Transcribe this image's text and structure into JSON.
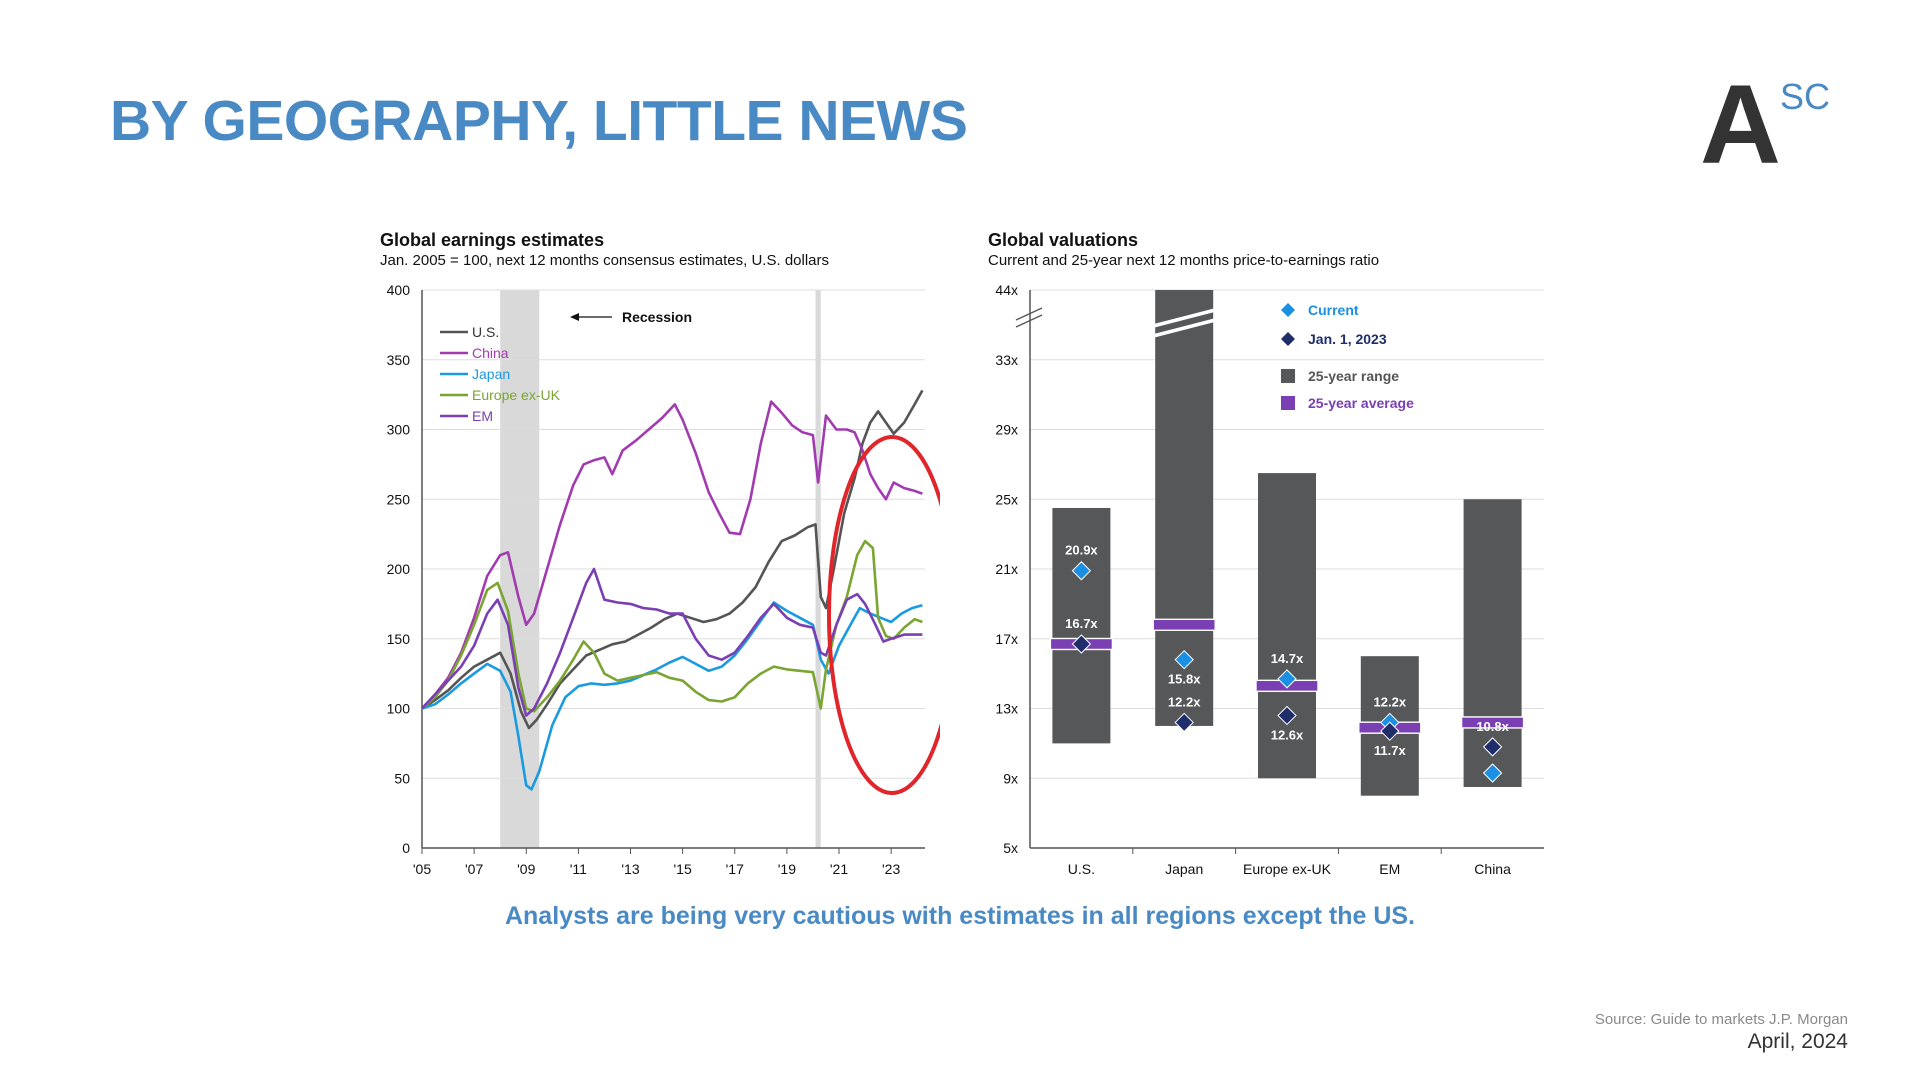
{
  "slide": {
    "title": "BY GEOGRAPHY, LITTLE NEWS",
    "logo_main": "A",
    "logo_sup": "SC",
    "caption": "Analysts are being very cautious with estimates in all regions except the US.",
    "source": "Source: Guide to markets J.P. Morgan",
    "date": "April, 2024"
  },
  "colors": {
    "title": "#4a8ac4",
    "highlight_ellipse": "#e0262b",
    "recession_band": "#d9d9d9"
  },
  "chart_data": [
    {
      "type": "line",
      "title": "Global earnings estimates",
      "subtitle": "Jan. 2005 = 100, next 12 months consensus estimates, U.S. dollars",
      "ylim": [
        0,
        400
      ],
      "xlim": [
        2005,
        2024.3
      ],
      "yticks": [
        "0",
        "50",
        "100",
        "150",
        "200",
        "250",
        "300",
        "350",
        "400"
      ],
      "ytick_values": [
        0,
        50,
        100,
        150,
        200,
        250,
        300,
        350,
        400
      ],
      "xticks": [
        "'05",
        "'07",
        "'09",
        "'11",
        "'13",
        "'15",
        "'17",
        "'19",
        "'21",
        "'23"
      ],
      "xtick_values": [
        2005,
        2007,
        2009,
        2011,
        2013,
        2015,
        2017,
        2019,
        2021,
        2023
      ],
      "recession_label": "Recession",
      "recessions": [
        [
          2008.0,
          2009.5
        ],
        [
          2020.1,
          2020.3
        ]
      ],
      "legend_position": "top-left",
      "series": [
        {
          "name": "U.S.",
          "color": "#555555",
          "points": [
            [
              2005,
              100
            ],
            [
              2005.5,
              106
            ],
            [
              2006,
              113
            ],
            [
              2006.5,
              122
            ],
            [
              2007,
              130
            ],
            [
              2007.5,
              135
            ],
            [
              2008,
              140
            ],
            [
              2008.4,
              125
            ],
            [
              2008.8,
              98
            ],
            [
              2009.1,
              86
            ],
            [
              2009.4,
              92
            ],
            [
              2009.8,
              103
            ],
            [
              2010.3,
              118
            ],
            [
              2010.8,
              128
            ],
            [
              2011.3,
              138
            ],
            [
              2011.8,
              142
            ],
            [
              2012.3,
              146
            ],
            [
              2012.8,
              148
            ],
            [
              2013.3,
              153
            ],
            [
              2013.8,
              158
            ],
            [
              2014.3,
              164
            ],
            [
              2014.8,
              168
            ],
            [
              2015.3,
              165
            ],
            [
              2015.8,
              162
            ],
            [
              2016.3,
              164
            ],
            [
              2016.8,
              168
            ],
            [
              2017.3,
              176
            ],
            [
              2017.8,
              187
            ],
            [
              2018.3,
              205
            ],
            [
              2018.8,
              220
            ],
            [
              2019.3,
              224
            ],
            [
              2019.8,
              230
            ],
            [
              2020.1,
              232
            ],
            [
              2020.3,
              180
            ],
            [
              2020.5,
              172
            ],
            [
              2020.8,
              200
            ],
            [
              2021.2,
              240
            ],
            [
              2021.6,
              265
            ],
            [
              2021.9,
              290
            ],
            [
              2022.2,
              305
            ],
            [
              2022.5,
              313
            ],
            [
              2022.8,
              305
            ],
            [
              2023.1,
              297
            ],
            [
              2023.5,
              305
            ],
            [
              2023.9,
              318
            ],
            [
              2024.2,
              328
            ]
          ]
        },
        {
          "name": "China",
          "color": "#a23bb0",
          "points": [
            [
              2005,
              100
            ],
            [
              2005.5,
              110
            ],
            [
              2006,
              122
            ],
            [
              2006.5,
              140
            ],
            [
              2007,
              165
            ],
            [
              2007.5,
              195
            ],
            [
              2008,
              210
            ],
            [
              2008.3,
              212
            ],
            [
              2008.7,
              180
            ],
            [
              2009.0,
              160
            ],
            [
              2009.3,
              168
            ],
            [
              2009.8,
              200
            ],
            [
              2010.3,
              232
            ],
            [
              2010.8,
              260
            ],
            [
              2011.2,
              275
            ],
            [
              2011.6,
              278
            ],
            [
              2012.0,
              280
            ],
            [
              2012.3,
              268
            ],
            [
              2012.7,
              285
            ],
            [
              2013.2,
              292
            ],
            [
              2013.7,
              300
            ],
            [
              2014.2,
              308
            ],
            [
              2014.7,
              318
            ],
            [
              2015.0,
              307
            ],
            [
              2015.5,
              283
            ],
            [
              2016.0,
              255
            ],
            [
              2016.4,
              240
            ],
            [
              2016.8,
              226
            ],
            [
              2017.2,
              225
            ],
            [
              2017.6,
              250
            ],
            [
              2018.0,
              290
            ],
            [
              2018.4,
              320
            ],
            [
              2018.8,
              312
            ],
            [
              2019.2,
              303
            ],
            [
              2019.6,
              298
            ],
            [
              2020.0,
              296
            ],
            [
              2020.2,
              262
            ],
            [
              2020.5,
              310
            ],
            [
              2020.9,
              300
            ],
            [
              2021.3,
              300
            ],
            [
              2021.6,
              298
            ],
            [
              2021.9,
              285
            ],
            [
              2022.2,
              268
            ],
            [
              2022.5,
              258
            ],
            [
              2022.8,
              250
            ],
            [
              2023.1,
              262
            ],
            [
              2023.5,
              258
            ],
            [
              2023.9,
              256
            ],
            [
              2024.2,
              254
            ]
          ]
        },
        {
          "name": "Japan",
          "color": "#1a9ae0",
          "points": [
            [
              2005,
              100
            ],
            [
              2005.5,
              103
            ],
            [
              2006,
              110
            ],
            [
              2006.5,
              118
            ],
            [
              2007,
              125
            ],
            [
              2007.5,
              132
            ],
            [
              2008,
              127
            ],
            [
              2008.4,
              112
            ],
            [
              2008.7,
              80
            ],
            [
              2009.0,
              45
            ],
            [
              2009.2,
              42
            ],
            [
              2009.5,
              55
            ],
            [
              2010.0,
              88
            ],
            [
              2010.5,
              108
            ],
            [
              2011.0,
              116
            ],
            [
              2011.5,
              118
            ],
            [
              2012.0,
              117
            ],
            [
              2012.5,
              118
            ],
            [
              2013.0,
              120
            ],
            [
              2013.5,
              124
            ],
            [
              2014.0,
              128
            ],
            [
              2014.5,
              133
            ],
            [
              2015.0,
              137
            ],
            [
              2015.5,
              132
            ],
            [
              2016.0,
              127
            ],
            [
              2016.5,
              130
            ],
            [
              2017.0,
              138
            ],
            [
              2017.5,
              150
            ],
            [
              2018.0,
              163
            ],
            [
              2018.5,
              176
            ],
            [
              2019.0,
              170
            ],
            [
              2019.5,
              165
            ],
            [
              2020.0,
              160
            ],
            [
              2020.3,
              135
            ],
            [
              2020.6,
              125
            ],
            [
              2021.0,
              145
            ],
            [
              2021.5,
              162
            ],
            [
              2021.8,
              172
            ],
            [
              2022.2,
              168
            ],
            [
              2022.6,
              165
            ],
            [
              2023.0,
              162
            ],
            [
              2023.4,
              168
            ],
            [
              2023.8,
              172
            ],
            [
              2024.2,
              174
            ]
          ]
        },
        {
          "name": "Europe ex-UK",
          "color": "#7aa531",
          "points": [
            [
              2005,
              100
            ],
            [
              2005.5,
              108
            ],
            [
              2006,
              120
            ],
            [
              2006.5,
              138
            ],
            [
              2007,
              160
            ],
            [
              2007.5,
              185
            ],
            [
              2007.9,
              190
            ],
            [
              2008.3,
              170
            ],
            [
              2008.7,
              125
            ],
            [
              2009.0,
              100
            ],
            [
              2009.3,
              98
            ],
            [
              2009.8,
              108
            ],
            [
              2010.3,
              120
            ],
            [
              2010.8,
              135
            ],
            [
              2011.2,
              148
            ],
            [
              2011.6,
              140
            ],
            [
              2012.0,
              125
            ],
            [
              2012.5,
              120
            ],
            [
              2013.0,
              122
            ],
            [
              2013.5,
              124
            ],
            [
              2014.0,
              126
            ],
            [
              2014.5,
              122
            ],
            [
              2015.0,
              120
            ],
            [
              2015.5,
              112
            ],
            [
              2016.0,
              106
            ],
            [
              2016.5,
              105
            ],
            [
              2017.0,
              108
            ],
            [
              2017.5,
              118
            ],
            [
              2018.0,
              125
            ],
            [
              2018.5,
              130
            ],
            [
              2019.0,
              128
            ],
            [
              2019.5,
              127
            ],
            [
              2020.0,
              126
            ],
            [
              2020.3,
              100
            ],
            [
              2020.5,
              128
            ],
            [
              2020.9,
              160
            ],
            [
              2021.3,
              180
            ],
            [
              2021.7,
              210
            ],
            [
              2022.0,
              220
            ],
            [
              2022.3,
              215
            ],
            [
              2022.5,
              165
            ],
            [
              2022.8,
              152
            ],
            [
              2023.1,
              150
            ],
            [
              2023.5,
              158
            ],
            [
              2023.9,
              164
            ],
            [
              2024.2,
              162
            ]
          ]
        },
        {
          "name": "EM",
          "color": "#7b3fb4",
          "points": [
            [
              2005,
              100
            ],
            [
              2005.5,
              110
            ],
            [
              2006,
              120
            ],
            [
              2006.5,
              130
            ],
            [
              2007,
              145
            ],
            [
              2007.5,
              168
            ],
            [
              2007.9,
              178
            ],
            [
              2008.3,
              160
            ],
            [
              2008.7,
              115
            ],
            [
              2009.0,
              95
            ],
            [
              2009.3,
              100
            ],
            [
              2009.8,
              118
            ],
            [
              2010.3,
              140
            ],
            [
              2010.8,
              165
            ],
            [
              2011.3,
              190
            ],
            [
              2011.6,
              200
            ],
            [
              2012.0,
              178
            ],
            [
              2012.5,
              176
            ],
            [
              2013.0,
              175
            ],
            [
              2013.5,
              172
            ],
            [
              2014.0,
              171
            ],
            [
              2014.5,
              168
            ],
            [
              2015.0,
              168
            ],
            [
              2015.5,
              150
            ],
            [
              2016.0,
              138
            ],
            [
              2016.5,
              135
            ],
            [
              2017.0,
              140
            ],
            [
              2017.5,
              152
            ],
            [
              2018.0,
              165
            ],
            [
              2018.5,
              175
            ],
            [
              2019.0,
              165
            ],
            [
              2019.5,
              160
            ],
            [
              2020.0,
              158
            ],
            [
              2020.3,
              140
            ],
            [
              2020.5,
              138
            ],
            [
              2020.9,
              160
            ],
            [
              2021.3,
              178
            ],
            [
              2021.7,
              182
            ],
            [
              2022.0,
              175
            ],
            [
              2022.4,
              160
            ],
            [
              2022.7,
              148
            ],
            [
              2023.0,
              150
            ],
            [
              2023.5,
              153
            ],
            [
              2024.2,
              153
            ]
          ]
        }
      ]
    },
    {
      "type": "bar",
      "title": "Global valuations",
      "subtitle": "Current and 25-year next 12 months price-to-earnings ratio",
      "ylim": [
        5,
        44
      ],
      "yticks": [
        "5x",
        "9x",
        "13x",
        "17x",
        "21x",
        "25x",
        "29x",
        "33x",
        "44x"
      ],
      "ytick_values": [
        5,
        9,
        13,
        17,
        21,
        25,
        29,
        33,
        44
      ],
      "axis_break": true,
      "categories": [
        "U.S.",
        "Japan",
        "Europe ex-UK",
        "EM",
        "China"
      ],
      "legend": [
        {
          "label": "Current",
          "color": "#1a8fe3",
          "marker": "diamond"
        },
        {
          "label": "Jan. 1, 2023",
          "color": "#1f2e6b",
          "marker": "diamond"
        },
        {
          "label": "25-year range",
          "color": "#555759",
          "marker": "square"
        },
        {
          "label": "25-year average",
          "color": "#7b3fb4",
          "marker": "square"
        }
      ],
      "legend_position": "top-right",
      "range_low": [
        11,
        12,
        9,
        8,
        8.5
      ],
      "range_high": [
        24.5,
        44,
        26.5,
        16,
        25
      ],
      "average": [
        16.7,
        17.8,
        14.3,
        11.9,
        12.2
      ],
      "current": [
        20.9,
        15.8,
        14.7,
        12.2,
        9.3
      ],
      "current_labels": [
        "20.9x",
        "15.8x",
        "14.7x",
        "12.2x",
        "9.3x"
      ],
      "jan_2023": [
        16.7,
        12.2,
        12.6,
        11.7,
        10.8
      ],
      "jan_2023_labels": [
        "16.7x",
        "12.2x",
        "12.6x",
        "11.7x",
        "10.8x"
      ]
    }
  ]
}
